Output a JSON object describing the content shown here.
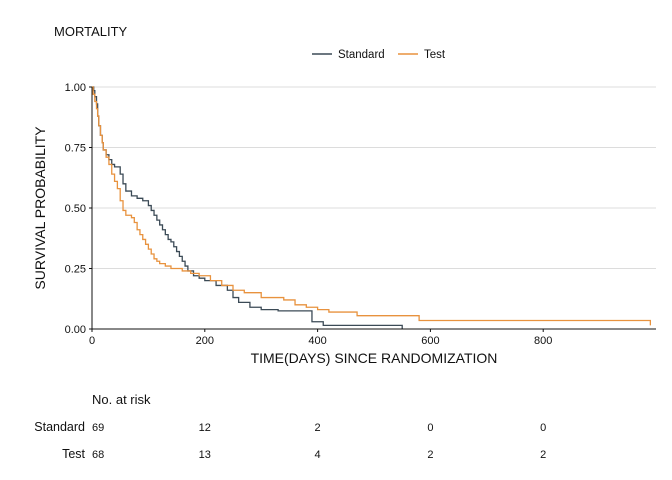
{
  "chart_data": {
    "type": "line",
    "title": "MORTALITY",
    "xlabel": "TIME(DAYS) SINCE RANDOMIZATION",
    "ylabel": "SURVIVAL PROBABILITY",
    "xlim": [
      0,
      1000
    ],
    "ylim": [
      0,
      1
    ],
    "x_ticks": [
      0,
      200,
      400,
      600,
      800
    ],
    "y_ticks": [
      0,
      0.25,
      0.5,
      0.75,
      1
    ],
    "x_tick_labels": [
      "0",
      "200",
      "400",
      "600",
      "800"
    ],
    "y_tick_labels": [
      "0.00",
      "0.25",
      "0.50",
      "0.75",
      "1.00"
    ],
    "grid": "horizontal",
    "legend_position": "top",
    "series": [
      {
        "name": "Standard",
        "color": "#3b4a56",
        "x": [
          0,
          3,
          5,
          8,
          10,
          12,
          15,
          18,
          20,
          25,
          30,
          35,
          40,
          50,
          55,
          60,
          70,
          80,
          90,
          100,
          105,
          110,
          115,
          120,
          125,
          130,
          135,
          140,
          145,
          150,
          155,
          160,
          165,
          170,
          180,
          190,
          200,
          220,
          240,
          250,
          260,
          280,
          300,
          330,
          360,
          390,
          410,
          550
        ],
        "y": [
          1.0,
          0.985,
          0.96,
          0.93,
          0.88,
          0.84,
          0.8,
          0.77,
          0.74,
          0.72,
          0.7,
          0.68,
          0.67,
          0.64,
          0.6,
          0.57,
          0.55,
          0.54,
          0.53,
          0.51,
          0.49,
          0.47,
          0.45,
          0.43,
          0.41,
          0.39,
          0.37,
          0.36,
          0.34,
          0.32,
          0.3,
          0.28,
          0.26,
          0.24,
          0.22,
          0.21,
          0.2,
          0.18,
          0.16,
          0.13,
          0.11,
          0.09,
          0.08,
          0.075,
          0.075,
          0.03,
          0.015,
          0.0
        ]
      },
      {
        "name": "Test",
        "color": "#e8923e",
        "x": [
          0,
          2,
          5,
          8,
          10,
          12,
          15,
          18,
          20,
          25,
          30,
          35,
          40,
          45,
          50,
          55,
          60,
          70,
          75,
          80,
          85,
          90,
          95,
          100,
          105,
          110,
          115,
          120,
          130,
          140,
          160,
          175,
          190,
          210,
          230,
          250,
          270,
          300,
          340,
          360,
          380,
          400,
          420,
          470,
          580,
          990
        ],
        "y": [
          1.0,
          0.97,
          0.94,
          0.91,
          0.88,
          0.84,
          0.8,
          0.77,
          0.74,
          0.71,
          0.68,
          0.64,
          0.61,
          0.58,
          0.53,
          0.49,
          0.47,
          0.46,
          0.44,
          0.41,
          0.39,
          0.37,
          0.35,
          0.33,
          0.31,
          0.29,
          0.28,
          0.27,
          0.26,
          0.25,
          0.24,
          0.23,
          0.22,
          0.2,
          0.18,
          0.16,
          0.15,
          0.13,
          0.12,
          0.1,
          0.09,
          0.08,
          0.07,
          0.055,
          0.035,
          0.015
        ]
      }
    ],
    "risk_table": {
      "title": "No. at risk",
      "times": [
        0,
        200,
        400,
        600,
        800
      ],
      "rows": [
        {
          "label": "Standard",
          "counts": [
            "69",
            "12",
            "2",
            "0",
            "0"
          ]
        },
        {
          "label": "Test",
          "counts": [
            "68",
            "13",
            "4",
            "2",
            "2"
          ]
        }
      ]
    }
  }
}
